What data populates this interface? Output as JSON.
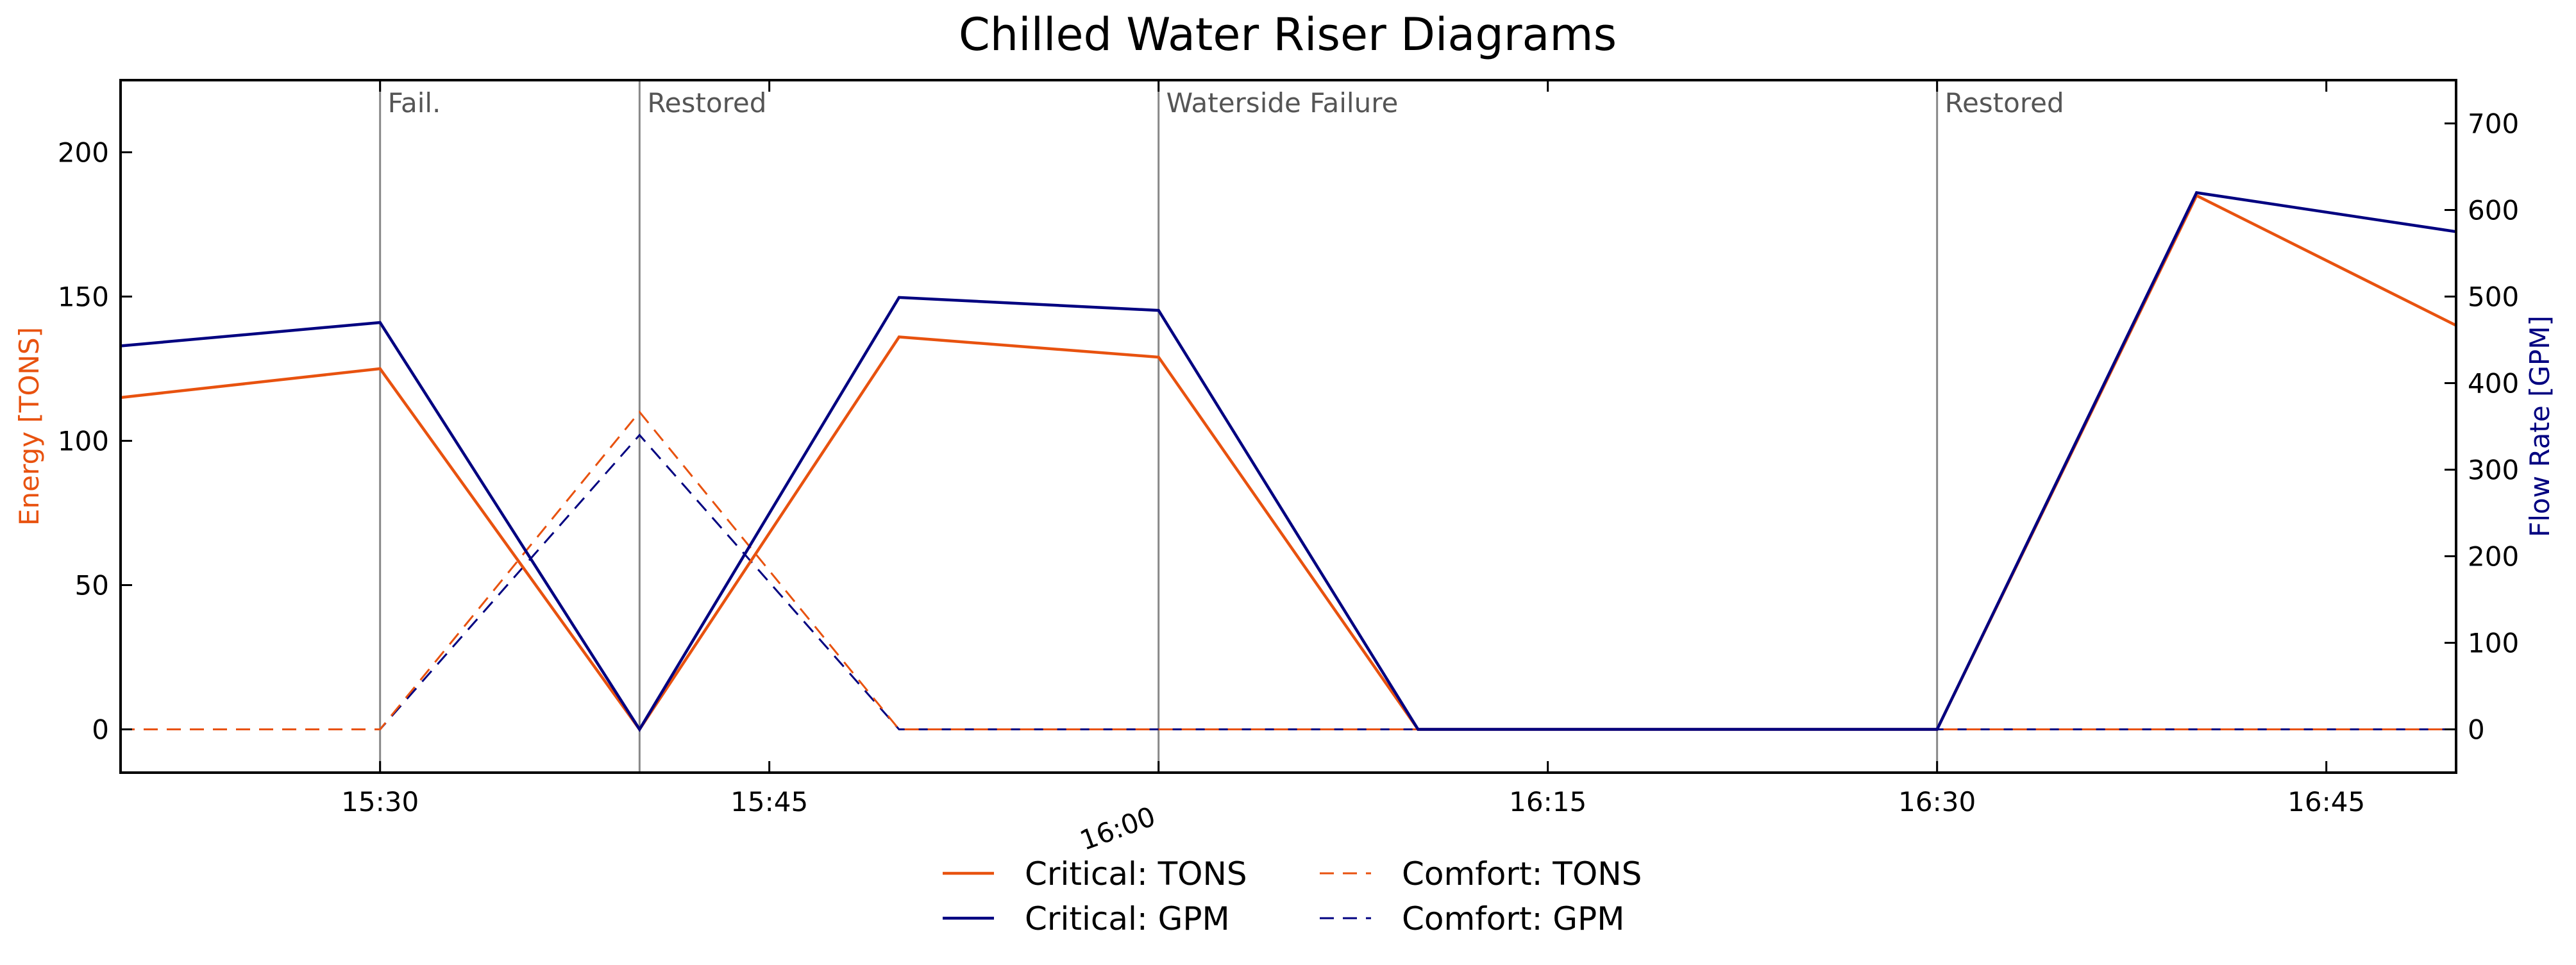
{
  "chart_data": {
    "type": "line",
    "title": "Chilled Water Riser Diagrams",
    "x": [
      "15:20",
      "15:30",
      "15:40",
      "15:50",
      "16:00",
      "16:10",
      "16:20",
      "16:30",
      "16:40",
      "16:50"
    ],
    "xticks": [
      "15:30",
      "15:45",
      "16:00",
      "16:15",
      "16:30",
      "16:45"
    ],
    "xlim": [
      "15:20",
      "16:50"
    ],
    "xlabel": "",
    "y_left": {
      "label": "Energy [TONS]",
      "color": "#e8520f",
      "lim": [
        -15,
        225
      ],
      "ticks": [
        0,
        50,
        100,
        150,
        200
      ]
    },
    "y_right": {
      "label": "Flow Rate [GPM]",
      "color": "#000080",
      "lim": [
        -50,
        750
      ],
      "ticks": [
        0,
        100,
        200,
        300,
        400,
        500,
        600,
        700
      ]
    },
    "series": [
      {
        "name": "Critical: TONS",
        "axis": "left",
        "style": "solid",
        "color": "#e8520f",
        "values": [
          115,
          125,
          0,
          136,
          129,
          0,
          0,
          0,
          185,
          140
        ]
      },
      {
        "name": "Critical: GPM",
        "axis": "right",
        "style": "solid",
        "color": "#000080",
        "values": [
          443,
          470,
          0,
          499,
          484,
          0,
          0,
          0,
          620,
          575
        ]
      },
      {
        "name": "Comfort: TONS",
        "axis": "left",
        "style": "dashed",
        "color": "#e8520f",
        "values": [
          0,
          0,
          110,
          0,
          0,
          0,
          0,
          0,
          0,
          0
        ]
      },
      {
        "name": "Comfort: GPM",
        "axis": "right",
        "style": "dashed",
        "color": "#000080",
        "values": [
          0,
          0,
          340,
          0,
          0,
          0,
          0,
          0,
          0,
          0
        ]
      }
    ],
    "annotations": [
      {
        "x": "15:30",
        "text": "Fail."
      },
      {
        "x": "15:40",
        "text": "Restored"
      },
      {
        "x": "16:00",
        "text": "Waterside Failure"
      },
      {
        "x": "16:30",
        "text": "Restored"
      }
    ],
    "grid": false,
    "legend_position": "bottom-center"
  }
}
